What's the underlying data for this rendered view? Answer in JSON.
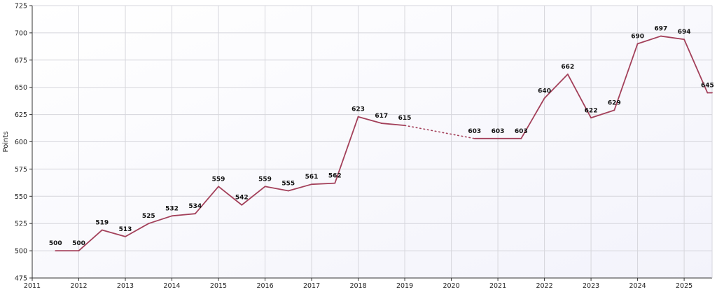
{
  "chart_data": {
    "type": "line",
    "title": "",
    "xlabel": "",
    "ylabel": "Points",
    "xlim": [
      2011,
      2025.6
    ],
    "ylim": [
      475,
      725
    ],
    "x_ticks": [
      "2011",
      "2012",
      "2013",
      "2014",
      "2015",
      "2016",
      "2017",
      "2018",
      "2019",
      "2020",
      "2021",
      "2022",
      "2023",
      "2024",
      "2025"
    ],
    "y_ticks": [
      "475",
      "500",
      "525",
      "550",
      "575",
      "600",
      "625",
      "650",
      "675",
      "700",
      "725"
    ],
    "grid": true,
    "legend": "none",
    "colors": {
      "line": "#a3405a",
      "background_top": "#ffffff",
      "background_bottom": "#f3f3fb",
      "grid": "#d6d6dc"
    },
    "series": [
      {
        "points": [
          {
            "x": 2011.5,
            "y": 500,
            "label": "500"
          },
          {
            "x": 2012.0,
            "y": 500,
            "label": "500"
          },
          {
            "x": 2012.5,
            "y": 519,
            "label": "519"
          },
          {
            "x": 2013.0,
            "y": 513,
            "label": "513"
          },
          {
            "x": 2013.5,
            "y": 525,
            "label": "525"
          },
          {
            "x": 2014.0,
            "y": 532,
            "label": "532"
          },
          {
            "x": 2014.5,
            "y": 534,
            "label": "534"
          },
          {
            "x": 2015.0,
            "y": 559,
            "label": "559"
          },
          {
            "x": 2015.5,
            "y": 542,
            "label": "542"
          },
          {
            "x": 2016.0,
            "y": 559,
            "label": "559"
          },
          {
            "x": 2016.5,
            "y": 555,
            "label": "555"
          },
          {
            "x": 2017.0,
            "y": 561,
            "label": "561"
          },
          {
            "x": 2017.5,
            "y": 562,
            "label": "562"
          },
          {
            "x": 2018.0,
            "y": 623,
            "label": "623"
          },
          {
            "x": 2018.5,
            "y": 617,
            "label": "617"
          },
          {
            "x": 2019.0,
            "y": 615,
            "label": "615"
          },
          {
            "x": 2020.5,
            "y": 603,
            "label": "603",
            "gap_before": true
          },
          {
            "x": 2021.0,
            "y": 603,
            "label": "603"
          },
          {
            "x": 2021.5,
            "y": 603,
            "label": "603"
          },
          {
            "x": 2022.0,
            "y": 640,
            "label": "640"
          },
          {
            "x": 2022.5,
            "y": 662,
            "label": "662"
          },
          {
            "x": 2023.0,
            "y": 622,
            "label": "622"
          },
          {
            "x": 2023.5,
            "y": 629,
            "label": "629"
          },
          {
            "x": 2024.0,
            "y": 690,
            "label": "690"
          },
          {
            "x": 2024.5,
            "y": 697,
            "label": "697"
          },
          {
            "x": 2025.0,
            "y": 694,
            "label": "694"
          },
          {
            "x": 2025.5,
            "y": 645,
            "label": "645"
          },
          {
            "x": 2025.6,
            "y": 645
          }
        ]
      }
    ]
  }
}
